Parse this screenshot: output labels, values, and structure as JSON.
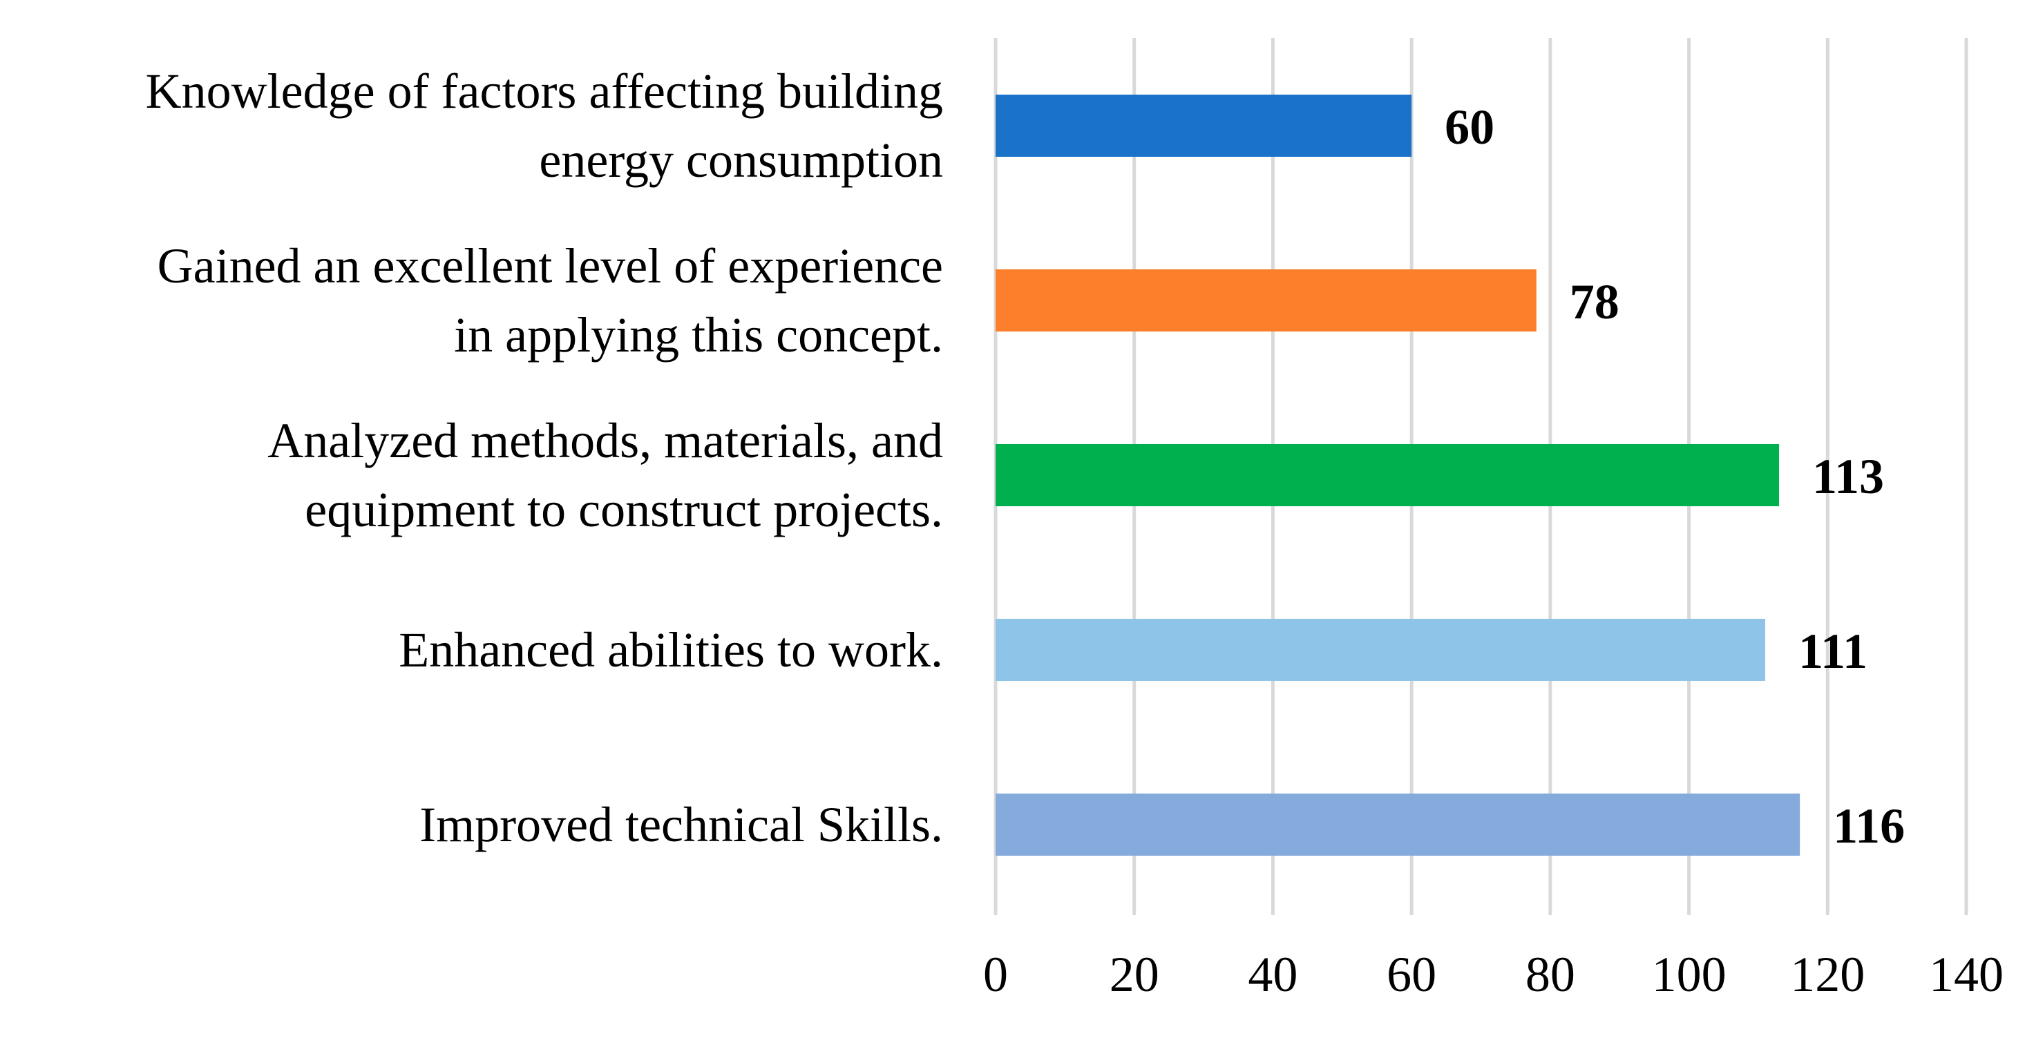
{
  "chart_data": {
    "type": "bar",
    "orientation": "horizontal",
    "title": "",
    "xlabel": "",
    "ylabel": "",
    "categories": [
      [
        "Knowledge of factors affecting building",
        "energy consumption"
      ],
      [
        "Gained an excellent level of experience",
        "in applying this concept."
      ],
      [
        "Analyzed methods, materials, and",
        "equipment to construct projects."
      ],
      [
        "Enhanced abilities to work."
      ],
      [
        "Improved technical Skills."
      ]
    ],
    "values": [
      60,
      78,
      113,
      111,
      116
    ],
    "value_labels": [
      "60",
      "78",
      "113",
      "111",
      "116"
    ],
    "colors": [
      "#1b73c9",
      "#fd7f2b",
      "#00b04f",
      "#8ec4e8",
      "#84abdc"
    ],
    "xlim": [
      0,
      140
    ],
    "xticks": [
      0,
      20,
      40,
      60,
      80,
      100,
      120,
      140
    ],
    "xtick_labels": [
      "0",
      "20",
      "40",
      "60",
      "80",
      "100",
      "120",
      "140"
    ],
    "grid": "vertical",
    "grid_color": "#d9d9d9",
    "legend": "none"
  }
}
